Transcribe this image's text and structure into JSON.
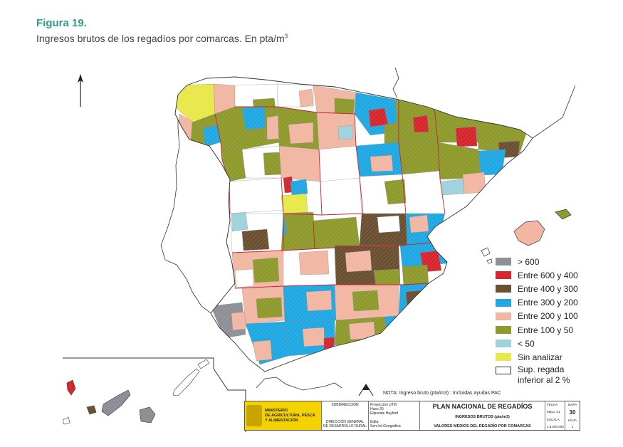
{
  "figure": {
    "label": "Figura 19.",
    "title": "Ingresos brutos de los regadíos por comarcas. En pta/m",
    "title_sup": "3"
  },
  "colors": {
    "gray": "#8e8f97",
    "red": "#d8262e",
    "brown": "#6b5032",
    "blue": "#1fa8e2",
    "salmon": "#f2b7a2",
    "olive": "#8f9a2c",
    "lightblue": "#9ed2dc",
    "yellow": "#e8e84a",
    "white": "#ffffff",
    "boundary": "#cc2233",
    "outline": "#333333"
  },
  "legend": [
    {
      "label": "> 600",
      "color": "#8e8f97"
    },
    {
      "label": "Entre 600 y 400",
      "color": "#d8262e"
    },
    {
      "label": "Entre 400 y 300",
      "color": "#6b5032"
    },
    {
      "label": "Entre 300 y 200",
      "color": "#1fa8e2"
    },
    {
      "label": "Entre 200 y 100",
      "color": "#f2b7a2"
    },
    {
      "label": "Entre 100 y 50",
      "color": "#8f9a2c"
    },
    {
      "label": "< 50",
      "color": "#9ed2dc"
    },
    {
      "label": "Sin analizar",
      "color": "#e8e84a"
    },
    {
      "label": "Sup. regada",
      "label2": "inferior al 2 %",
      "color": "#ffffff"
    }
  ],
  "note": "NOTA: Ingreso bruto (pta/m3) : Incluidas ayudas PAC",
  "title_block": {
    "ministry": [
      "MINISTERIO",
      "DE AGRICULTURA, PESCA",
      "Y ALIMENTACIÓN"
    ],
    "subdireccion": "SUBDIRECCIÓN",
    "direccion": [
      "DIRECCIÓN GENERAL",
      "DE DESARROLLO RURAL"
    ],
    "projection": [
      "Proyección UTM",
      "Huso 30",
      "Elipsoide Hayford"
    ],
    "edita": [
      "Edita:",
      "Serv.Inf.Geográfica"
    ],
    "plan": "PLAN NACIONAL DE REGADÍOS",
    "ingresos": "INGRESOS BRUTOS (pta/m3)",
    "valores": "VALORES MEDIOS DEL REGADÍO POR COMARCAS",
    "fecha_label": "FECHA",
    "fecha": "Mayo, 01",
    "mapa_label": "MAPA",
    "mapa": "30",
    "escala_label": "ESCALA",
    "escala": "1:6.000.000",
    "hoja_label": "HOJA",
    "hoja": "1"
  }
}
